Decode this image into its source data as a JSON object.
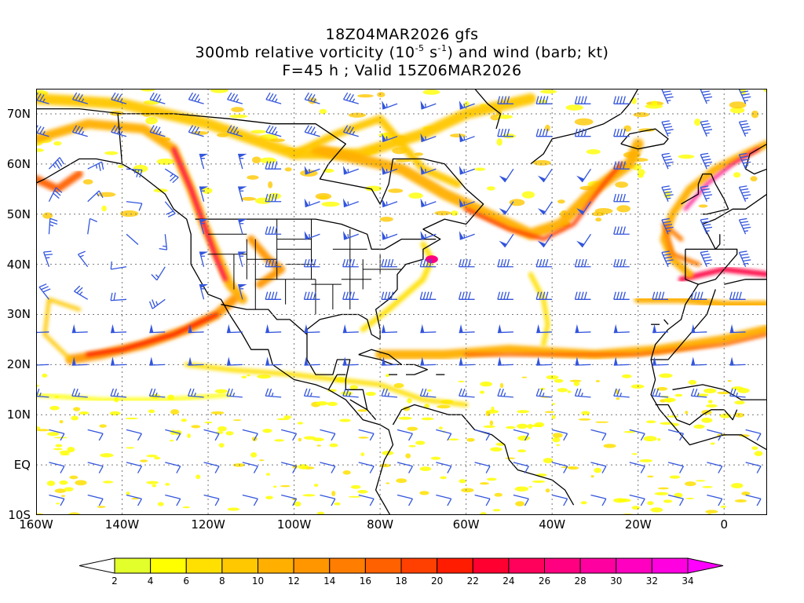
{
  "title": {
    "line1": "18Z04MAR2026 gfs",
    "line2_prefix": "300mb relative vorticity (10",
    "line2_exp1": "-5",
    "line2_mid": " s",
    "line2_exp2": "-1",
    "line2_suffix": ") and wind (barb; kt)",
    "line3": "F=45 h ; Valid 15Z06MAR2026"
  },
  "map": {
    "lon_range": [
      -160,
      10
    ],
    "lat_range": [
      -10,
      75
    ],
    "lat_labels": [
      "70N",
      "60N",
      "50N",
      "40N",
      "30N",
      "20N",
      "10N",
      "EQ",
      "10S"
    ],
    "lat_values": [
      70,
      60,
      50,
      40,
      30,
      20,
      10,
      0,
      -10
    ],
    "lon_labels": [
      "160W",
      "140W",
      "120W",
      "100W",
      "80W",
      "60W",
      "40W",
      "20W",
      "0"
    ],
    "lon_values": [
      -160,
      -140,
      -120,
      -100,
      -80,
      -60,
      -40,
      -20,
      0
    ],
    "gridlines": true,
    "barb_color": "#3355dd",
    "coastline_color": "#000000"
  },
  "colorbar": {
    "labels": [
      "2",
      "4",
      "6",
      "8",
      "10",
      "12",
      "14",
      "16",
      "18",
      "20",
      "22",
      "24",
      "26",
      "28",
      "30",
      "32",
      "34"
    ],
    "colors": [
      "#e3ff2b",
      "#ffff00",
      "#ffe000",
      "#ffc800",
      "#ffaf00",
      "#ff9600",
      "#ff7d00",
      "#ff6000",
      "#ff4000",
      "#ff1c00",
      "#ff0030",
      "#ff005a",
      "#ff0080",
      "#ff00a0",
      "#ff00c0",
      "#ff00e0"
    ],
    "under_color": "#ffffff",
    "over_color": "#ff00ff"
  }
}
